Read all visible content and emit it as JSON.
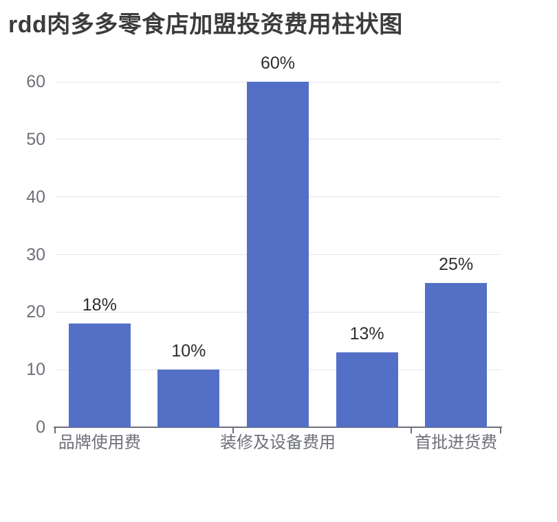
{
  "page": {
    "background": "#ffffff"
  },
  "chart_data": {
    "type": "bar",
    "title": "rdd肉多多零食店加盟投资费用柱状图",
    "categories": [
      "品牌使用费",
      "",
      "装修及设备费用",
      "",
      "首批进货费"
    ],
    "x_label_visible_indices": [
      0,
      2,
      4
    ],
    "values": [
      18,
      10,
      60,
      13,
      25
    ],
    "data_labels": [
      "18%",
      "10%",
      "60%",
      "13%",
      "25%"
    ],
    "y_ticks": [
      0,
      10,
      20,
      30,
      40,
      50,
      60
    ],
    "ylim": [
      0,
      60
    ],
    "xlabel": "",
    "ylabel": "",
    "legend_position": "none",
    "grid": "horizontal",
    "colors": {
      "bar": "#5470c6",
      "gridline": "#e0e6f1",
      "axis": "#6e7079",
      "y_label": "#6e7079",
      "x_label": "#6e7079",
      "value_label": "#2e2e2e",
      "title": "#3c3c3c",
      "background": "#ffffff"
    }
  }
}
